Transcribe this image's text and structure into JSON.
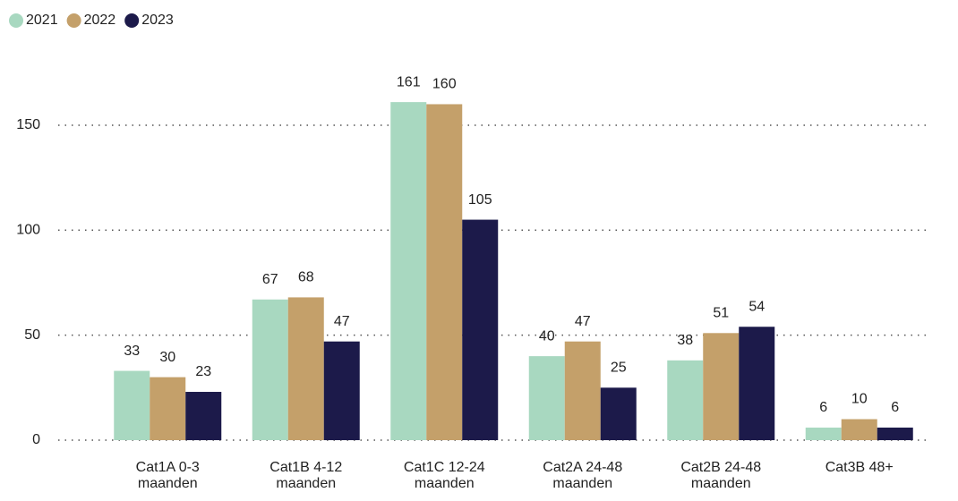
{
  "chart_data": {
    "type": "bar",
    "categories": [
      "Cat1A 0-3 maanden",
      "Cat1B 4-12 maanden",
      "Cat1C 12-24 maanden",
      "Cat2A 24-48 maanden",
      "Cat2B 24-48 maanden",
      "Cat3B 48+"
    ],
    "series": [
      {
        "name": "2021",
        "color": "#a8d8c0",
        "values": [
          33,
          67,
          161,
          40,
          38,
          6
        ]
      },
      {
        "name": "2022",
        "color": "#c4a06a",
        "values": [
          30,
          68,
          160,
          47,
          51,
          10
        ]
      },
      {
        "name": "2023",
        "color": "#1c1a4a",
        "values": [
          23,
          47,
          105,
          25,
          54,
          6
        ]
      }
    ],
    "ylim": [
      0,
      170
    ],
    "yticks": [
      0,
      50,
      100,
      150
    ],
    "grid": true,
    "legend": "top-left"
  }
}
